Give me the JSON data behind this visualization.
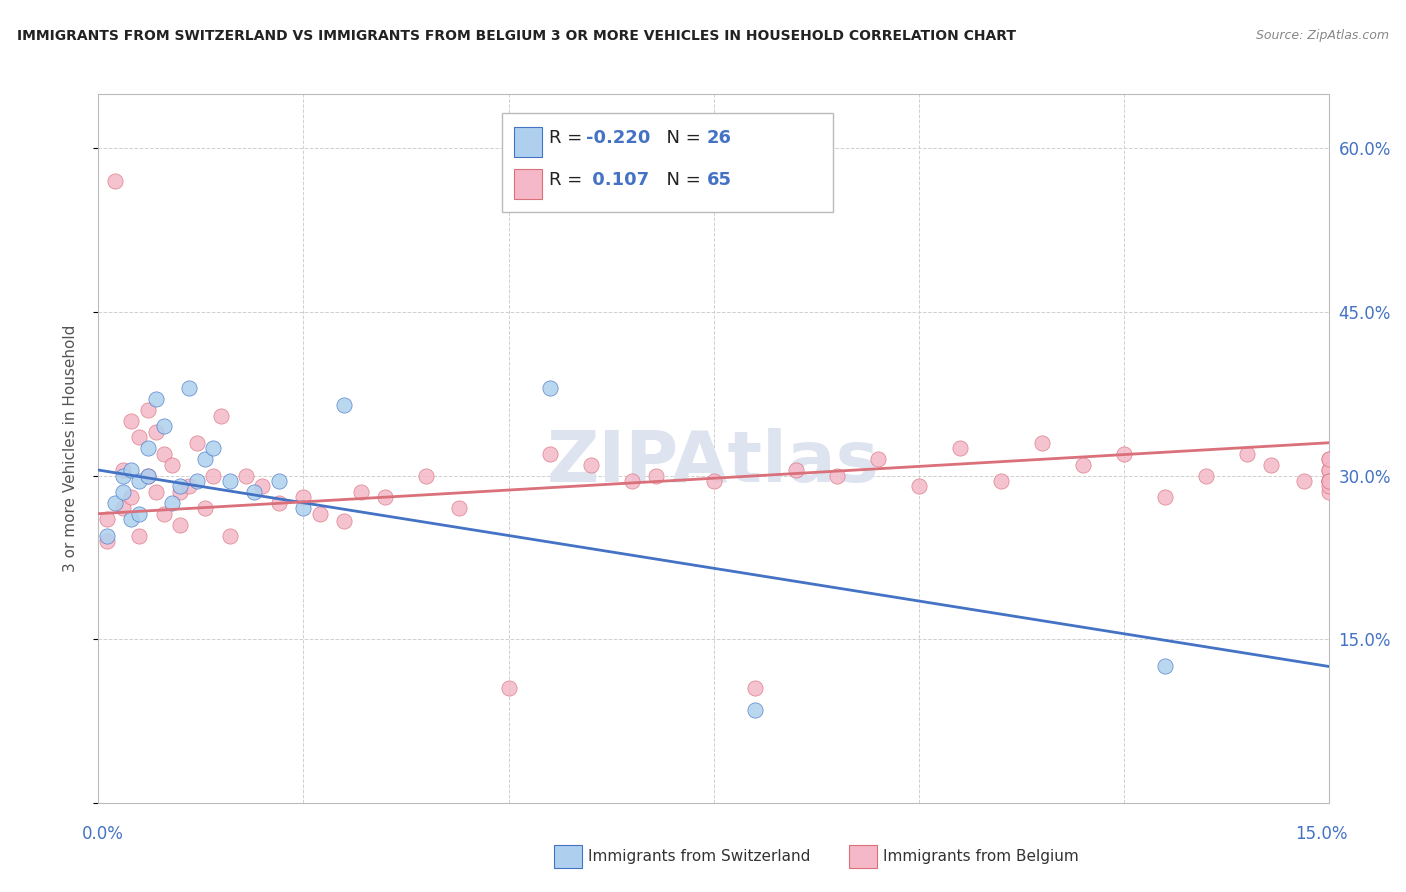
{
  "title": "IMMIGRANTS FROM SWITZERLAND VS IMMIGRANTS FROM BELGIUM 3 OR MORE VEHICLES IN HOUSEHOLD CORRELATION CHART",
  "source": "Source: ZipAtlas.com",
  "ylabel_label": "3 or more Vehicles in Household",
  "legend_label_blue": "Immigrants from Switzerland",
  "legend_label_pink": "Immigrants from Belgium",
  "blue_color": "#aed0ee",
  "pink_color": "#f4b8c8",
  "blue_line_color": "#4472c4",
  "pink_line_color": "#d9707a",
  "R_blue": "-0.220",
  "N_blue": "26",
  "R_pink": "0.107",
  "N_pink": "65",
  "text_color": "#4472c4",
  "label_color": "#333333",
  "x_min": 0.0,
  "x_max": 0.15,
  "y_min": 0.0,
  "y_max": 0.65,
  "blue_scatter_x": [
    0.001,
    0.002,
    0.003,
    0.003,
    0.004,
    0.004,
    0.005,
    0.005,
    0.006,
    0.006,
    0.007,
    0.008,
    0.009,
    0.01,
    0.011,
    0.012,
    0.013,
    0.014,
    0.016,
    0.019,
    0.022,
    0.025,
    0.03,
    0.055,
    0.08,
    0.13
  ],
  "blue_scatter_y": [
    0.245,
    0.275,
    0.285,
    0.3,
    0.305,
    0.26,
    0.295,
    0.265,
    0.325,
    0.3,
    0.37,
    0.345,
    0.275,
    0.29,
    0.38,
    0.295,
    0.315,
    0.325,
    0.295,
    0.285,
    0.295,
    0.27,
    0.365,
    0.38,
    0.085,
    0.125
  ],
  "pink_scatter_x": [
    0.001,
    0.001,
    0.002,
    0.003,
    0.003,
    0.004,
    0.004,
    0.005,
    0.005,
    0.006,
    0.006,
    0.007,
    0.007,
    0.008,
    0.008,
    0.009,
    0.01,
    0.01,
    0.011,
    0.012,
    0.013,
    0.014,
    0.015,
    0.016,
    0.018,
    0.02,
    0.022,
    0.025,
    0.027,
    0.03,
    0.032,
    0.035,
    0.04,
    0.044,
    0.05,
    0.055,
    0.06,
    0.065,
    0.068,
    0.075,
    0.08,
    0.085,
    0.09,
    0.095,
    0.1,
    0.105,
    0.11,
    0.115,
    0.12,
    0.125,
    0.13,
    0.135,
    0.14,
    0.143,
    0.147,
    0.15,
    0.15,
    0.15,
    0.15,
    0.15,
    0.15,
    0.15,
    0.15,
    0.15,
    0.15
  ],
  "pink_scatter_y": [
    0.24,
    0.26,
    0.57,
    0.27,
    0.305,
    0.28,
    0.35,
    0.245,
    0.335,
    0.36,
    0.3,
    0.34,
    0.285,
    0.32,
    0.265,
    0.31,
    0.255,
    0.285,
    0.29,
    0.33,
    0.27,
    0.3,
    0.355,
    0.245,
    0.3,
    0.29,
    0.275,
    0.28,
    0.265,
    0.258,
    0.285,
    0.28,
    0.3,
    0.27,
    0.105,
    0.32,
    0.31,
    0.295,
    0.3,
    0.295,
    0.105,
    0.305,
    0.3,
    0.315,
    0.29,
    0.325,
    0.295,
    0.33,
    0.31,
    0.32,
    0.28,
    0.3,
    0.32,
    0.31,
    0.295,
    0.285,
    0.295,
    0.305,
    0.315,
    0.295,
    0.305,
    0.315,
    0.295,
    0.29,
    0.295
  ],
  "blue_line_x": [
    0.0,
    0.15
  ],
  "blue_line_y": [
    0.305,
    0.125
  ],
  "pink_line_x": [
    0.0,
    0.15
  ],
  "pink_line_y": [
    0.265,
    0.33
  ],
  "bg_color": "#ffffff",
  "grid_color": "#d0d0d0",
  "ytick_vals": [
    0.0,
    0.15,
    0.3,
    0.45,
    0.6
  ],
  "ytick_labels": [
    "",
    "15.0%",
    "30.0%",
    "45.0%",
    "60.0%"
  ]
}
